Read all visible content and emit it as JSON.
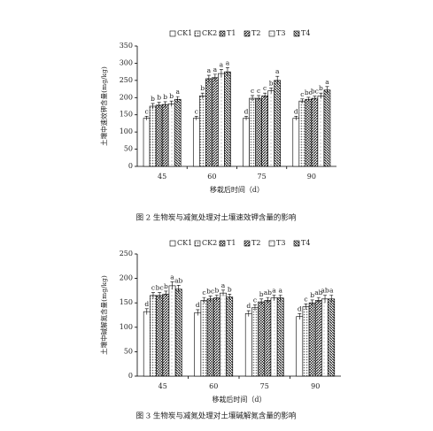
{
  "chart_data": [
    {
      "type": "bar",
      "ylabel": "土壤中速效钾含量(mg/kg)",
      "xlabel": "移栽后时间（d）",
      "caption": "图 2  生物炭与减氮处理对土壤速效钾含量的影响",
      "categories": [
        "45",
        "60",
        "75",
        "90"
      ],
      "ylim": [
        0,
        350
      ],
      "yticks": [
        0,
        50,
        100,
        150,
        200,
        250,
        300,
        350
      ],
      "series": [
        {
          "name": "CK1",
          "color": "#ffffff",
          "pattern": "none",
          "values": [
            140,
            140,
            140,
            140
          ],
          "errors": [
            6,
            6,
            6,
            6
          ],
          "letters": [
            "c",
            "c",
            "d",
            "d"
          ]
        },
        {
          "name": "CK2",
          "color": "#999999",
          "pattern": "dots",
          "values": [
            175,
            205,
            198,
            190
          ],
          "errors": [
            8,
            8,
            8,
            6
          ],
          "letters": [
            "b",
            "b",
            "c",
            "c"
          ]
        },
        {
          "name": "T1",
          "color": "#333333",
          "pattern": "checker",
          "values": [
            178,
            255,
            198,
            195
          ],
          "errors": [
            8,
            10,
            8,
            6
          ],
          "letters": [
            "b",
            "a",
            "c",
            "bc"
          ]
        },
        {
          "name": "T2",
          "color": "#555555",
          "pattern": "diag",
          "values": [
            180,
            258,
            205,
            198
          ],
          "errors": [
            8,
            10,
            8,
            6
          ],
          "letters": [
            "b",
            "a",
            "c",
            "bc"
          ]
        },
        {
          "name": "T3",
          "color": "#bbbbbb",
          "pattern": "light",
          "values": [
            182,
            270,
            220,
            205
          ],
          "errors": [
            8,
            12,
            8,
            8
          ],
          "letters": [
            "b",
            "a",
            "b",
            "b"
          ]
        },
        {
          "name": "T4",
          "color": "#444444",
          "pattern": "hatch",
          "values": [
            195,
            275,
            250,
            222
          ],
          "errors": [
            8,
            12,
            12,
            10
          ],
          "letters": [
            "a",
            "a",
            "a",
            "a"
          ]
        }
      ]
    },
    {
      "type": "bar",
      "ylabel": "土壤中碱解氮含量(mg/kg)",
      "xlabel": "移栽后时间（d）",
      "caption": "图 3  生物炭与减氮处理对土壤碱解氮含量的影响",
      "categories": [
        "45",
        "60",
        "75",
        "90"
      ],
      "ylim": [
        0,
        250
      ],
      "yticks": [
        0,
        50,
        100,
        150,
        200,
        250
      ],
      "series": [
        {
          "name": "CK1",
          "color": "#ffffff",
          "pattern": "none",
          "values": [
            132,
            130,
            128,
            122
          ],
          "errors": [
            6,
            6,
            6,
            6
          ],
          "letters": [
            "d",
            "d",
            "d",
            "d"
          ]
        },
        {
          "name": "CK2",
          "color": "#999999",
          "pattern": "dots",
          "values": [
            165,
            155,
            140,
            142
          ],
          "errors": [
            6,
            6,
            6,
            6
          ],
          "letters": [
            "c",
            "c",
            "c",
            "c"
          ]
        },
        {
          "name": "T1",
          "color": "#333333",
          "pattern": "checker",
          "values": [
            165,
            158,
            152,
            150
          ],
          "errors": [
            6,
            6,
            6,
            6
          ],
          "letters": [
            "bc",
            "bc",
            "b",
            "b"
          ]
        },
        {
          "name": "T2",
          "color": "#555555",
          "pattern": "diag",
          "values": [
            168,
            160,
            155,
            155
          ],
          "errors": [
            6,
            6,
            6,
            6
          ],
          "letters": [
            "b",
            "b",
            "ab",
            "ab"
          ]
        },
        {
          "name": "T3",
          "color": "#bbbbbb",
          "pattern": "light",
          "values": [
            185,
            170,
            160,
            158
          ],
          "errors": [
            8,
            6,
            6,
            8
          ],
          "letters": [
            "a",
            "a",
            "a",
            "ab"
          ]
        },
        {
          "name": "T4",
          "color": "#444444",
          "pattern": "hatch",
          "values": [
            178,
            162,
            160,
            158
          ],
          "errors": [
            8,
            6,
            6,
            8
          ],
          "letters": [
            "ab",
            "b",
            "a",
            "a"
          ]
        }
      ]
    }
  ]
}
